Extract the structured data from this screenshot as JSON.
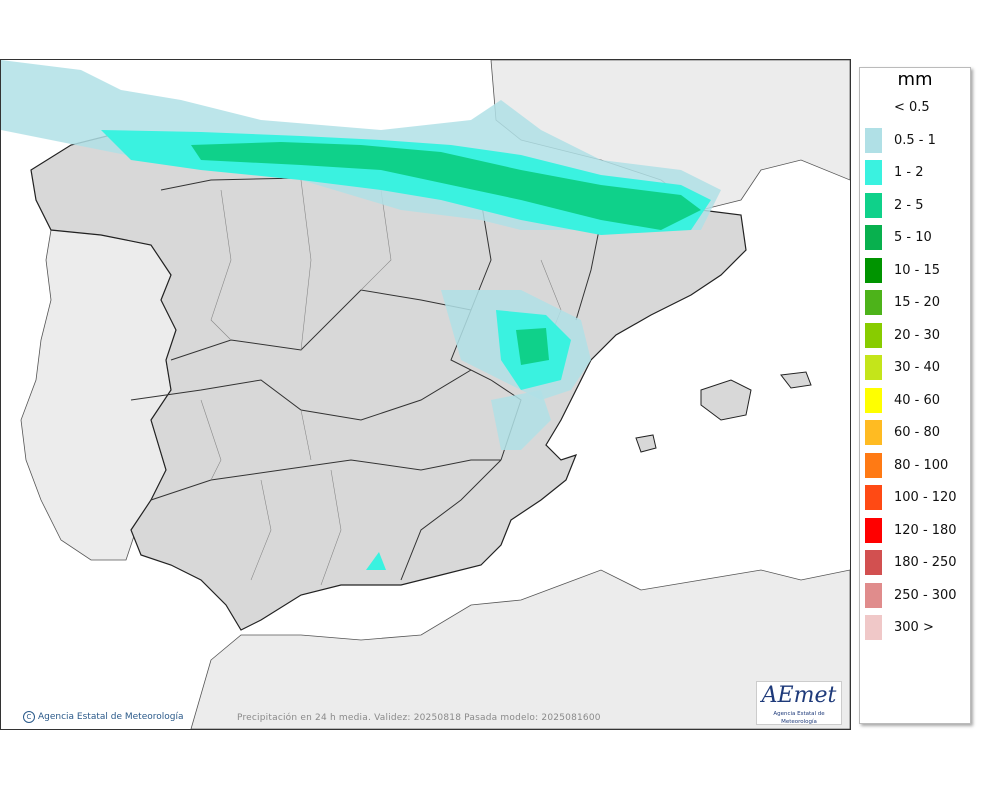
{
  "legend": {
    "unit": "mm",
    "entries": [
      {
        "label": "< 0.5",
        "color": "#ffffff"
      },
      {
        "label": "0.5 - 1",
        "color": "#b0e0e6"
      },
      {
        "label": "1 - 2",
        "color": "#3af2e0"
      },
      {
        "label": "2 - 5",
        "color": "#0fd18a"
      },
      {
        "label": "5 - 10",
        "color": "#08b04e"
      },
      {
        "label": "10 - 15",
        "color": "#009400"
      },
      {
        "label": "15 - 20",
        "color": "#4db31a"
      },
      {
        "label": "20 - 30",
        "color": "#88cc00"
      },
      {
        "label": "30 - 40",
        "color": "#c4e51a"
      },
      {
        "label": "40 - 60",
        "color": "#ffff00"
      },
      {
        "label": "60 - 80",
        "color": "#ffbb22"
      },
      {
        "label": "80 - 100",
        "color": "#ff7a14"
      },
      {
        "label": "100 - 120",
        "color": "#ff4a14"
      },
      {
        "label": "120 - 180",
        "color": "#ff0000"
      },
      {
        "label": "180 - 250",
        "color": "#d25050"
      },
      {
        "label": "250 - 300",
        "color": "#e08c8c"
      },
      {
        "label": "300 >",
        "color": "#f0c8c8"
      }
    ]
  },
  "map": {
    "credit": "Agencia Estatal de Meteorología",
    "footer": "Precipitación en 24 h media. Validez: 20250818 Pasada modelo: 2025081600",
    "logo_text": "AEmet",
    "logo_sub": "Agencia Estatal de Meteorología",
    "colors": {
      "land": "#d8d8d8",
      "sea": "#ffffff",
      "foreign_land": "#ececec",
      "border": "#222222"
    }
  }
}
